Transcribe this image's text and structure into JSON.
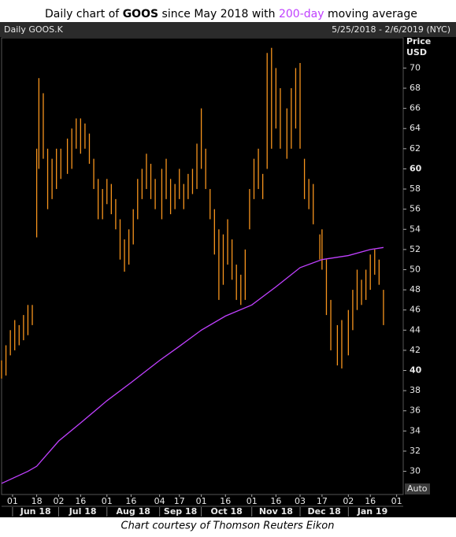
{
  "chart_data": {
    "type": "ohlc",
    "title": [
      "Daily chart of ",
      "GOOS",
      " since May 2018 with ",
      "200-day",
      " moving average"
    ],
    "panel_label": "Daily GOOS.K",
    "date_range": "5/25/2018 - 2/6/2019 (NYC)",
    "y_axis_label": [
      "Price",
      "USD"
    ],
    "scale_mode": "Auto",
    "source": "Chart courtesy of Thomson Reuters Eikon",
    "xlim": [
      "2018-05-25",
      "2019-02-06"
    ],
    "xticks": [
      {
        "value": "2018-06-01",
        "label": "01"
      },
      {
        "value": "2018-06-18",
        "label": "18"
      },
      {
        "value": "2018-07-02",
        "label": "02"
      },
      {
        "value": "2018-07-16",
        "label": "16"
      },
      {
        "value": "2018-08-01",
        "label": "01"
      },
      {
        "value": "2018-08-16",
        "label": "16"
      },
      {
        "value": "2018-09-04",
        "label": "04"
      },
      {
        "value": "2018-09-17",
        "label": "17"
      },
      {
        "value": "2018-10-01",
        "label": "01"
      },
      {
        "value": "2018-10-16",
        "label": "16"
      },
      {
        "value": "2018-11-01",
        "label": "01"
      },
      {
        "value": "2018-11-16",
        "label": "16"
      },
      {
        "value": "2018-12-03",
        "label": "03"
      },
      {
        "value": "2018-12-17",
        "label": "17"
      },
      {
        "value": "2019-01-02",
        "label": "02"
      },
      {
        "value": "2019-01-16",
        "label": "16"
      },
      {
        "value": "2019-02-01",
        "label": "01"
      }
    ],
    "month_labels": [
      "Jun 18",
      "Jul 18",
      "Aug 18",
      "Sep 18",
      "Oct 18",
      "Nov 18",
      "Dec 18",
      "Jan 19"
    ],
    "ylim": [
      27.7,
      73.0
    ],
    "yticks": [
      30,
      32,
      34,
      36,
      38,
      40,
      42,
      44,
      46,
      48,
      50,
      52,
      54,
      56,
      58,
      60,
      62,
      64,
      66,
      68,
      70
    ],
    "bold_yticks": [
      40,
      60
    ],
    "bars": {
      "color": "#f7941d",
      "x": [
        "2018-05-25",
        "2018-05-29",
        "2018-05-31",
        "2018-06-04",
        "2018-06-06",
        "2018-06-08",
        "2018-06-12",
        "2018-06-14",
        "2018-06-18",
        "2018-06-19",
        "2018-06-21",
        "2018-06-25",
        "2018-06-27",
        "2018-06-29",
        "2018-07-03",
        "2018-07-06",
        "2018-07-10",
        "2018-07-12",
        "2018-07-16",
        "2018-07-18",
        "2018-07-20",
        "2018-07-24",
        "2018-07-26",
        "2018-07-30",
        "2018-08-01",
        "2018-08-03",
        "2018-08-07",
        "2018-08-09",
        "2018-08-13",
        "2018-08-15",
        "2018-08-17",
        "2018-08-21",
        "2018-08-23",
        "2018-08-27",
        "2018-08-29",
        "2018-08-31",
        "2018-09-05",
        "2018-09-07",
        "2018-09-11",
        "2018-09-13",
        "2018-09-17",
        "2018-09-19",
        "2018-09-21",
        "2018-09-25",
        "2018-09-27",
        "2018-10-01",
        "2018-10-03",
        "2018-10-05",
        "2018-10-09",
        "2018-10-11",
        "2018-10-15",
        "2018-10-17",
        "2018-10-19",
        "2018-10-23",
        "2018-10-25",
        "2018-10-29",
        "2018-10-31",
        "2018-11-02",
        "2018-11-06",
        "2018-11-08",
        "2018-11-12",
        "2018-11-14",
        "2018-11-16",
        "2018-11-20",
        "2018-11-23",
        "2018-11-27",
        "2018-11-29",
        "2018-12-03",
        "2018-12-05",
        "2018-12-07",
        "2018-12-11",
        "2018-12-14",
        "2018-12-17",
        "2018-12-19",
        "2018-12-21",
        "2018-12-26",
        "2018-12-28",
        "2019-01-02",
        "2019-01-04",
        "2019-01-08",
        "2019-01-10",
        "2019-01-14",
        "2019-01-16",
        "2019-01-18",
        "2019-01-22",
        "2019-01-24"
      ],
      "high": [
        41.0,
        42.5,
        44.0,
        45.0,
        44.5,
        45.5,
        46.5,
        46.5,
        62.0,
        69.0,
        67.5,
        62.0,
        61.0,
        62.0,
        62.0,
        63.0,
        64.0,
        65.0,
        65.0,
        64.5,
        63.5,
        61.0,
        59.0,
        58.0,
        59.0,
        58.5,
        57.0,
        55.0,
        53.0,
        54.0,
        56.0,
        59.0,
        60.0,
        61.5,
        60.5,
        59.0,
        60.0,
        61.0,
        59.0,
        58.5,
        60.0,
        58.5,
        59.5,
        60.0,
        62.5,
        66.0,
        62.0,
        58.0,
        56.0,
        54.0,
        53.5,
        55.0,
        53.0,
        50.5,
        49.5,
        52.0,
        58.0,
        61.0,
        62.0,
        59.5,
        71.5,
        72.0,
        70.0,
        68.0,
        66.0,
        68.0,
        70.0,
        70.5,
        61.0,
        59.0,
        58.5,
        53.5,
        54.0,
        51.0,
        47.0,
        44.5,
        45.0,
        46.0,
        48.0,
        50.0,
        49.0,
        50.0,
        51.5,
        52.0,
        51.0,
        48.0
      ],
      "low": [
        39.2,
        39.5,
        41.5,
        42.0,
        42.5,
        43.0,
        43.5,
        44.5,
        53.2,
        60.0,
        61.0,
        56.0,
        57.0,
        58.0,
        59.0,
        59.5,
        60.0,
        62.0,
        61.5,
        62.0,
        60.5,
        58.0,
        55.0,
        55.0,
        56.5,
        55.5,
        54.0,
        51.0,
        49.8,
        50.5,
        52.5,
        55.0,
        57.0,
        58.0,
        57.0,
        56.0,
        55.0,
        57.0,
        55.5,
        56.0,
        57.0,
        56.0,
        57.0,
        57.5,
        58.0,
        60.0,
        58.0,
        55.0,
        51.5,
        47.0,
        48.5,
        50.5,
        49.0,
        47.0,
        46.5,
        47.0,
        54.0,
        57.0,
        58.0,
        57.0,
        60.0,
        62.0,
        64.0,
        62.0,
        61.0,
        62.0,
        64.0,
        62.0,
        57.0,
        56.0,
        54.5,
        51.0,
        50.0,
        45.5,
        42.0,
        40.5,
        40.2,
        41.5,
        44.0,
        46.0,
        46.5,
        47.0,
        48.0,
        49.5,
        48.5,
        44.5
      ]
    },
    "moving_average": {
      "color": "#c040ff",
      "x": [
        "2018-05-25",
        "2018-06-12",
        "2018-06-18",
        "2018-07-02",
        "2018-07-16",
        "2018-08-01",
        "2018-08-16",
        "2018-09-04",
        "2018-09-17",
        "2018-10-01",
        "2018-10-16",
        "2018-11-01",
        "2018-11-16",
        "2018-12-03",
        "2018-12-17",
        "2019-01-02",
        "2019-01-16",
        "2019-01-24"
      ],
      "values": [
        28.8,
        30.0,
        30.5,
        33.0,
        34.8,
        37.0,
        38.8,
        41.0,
        42.4,
        44.0,
        45.4,
        46.5,
        48.3,
        50.2,
        51.0,
        51.4,
        52.0,
        52.2
      ]
    }
  }
}
